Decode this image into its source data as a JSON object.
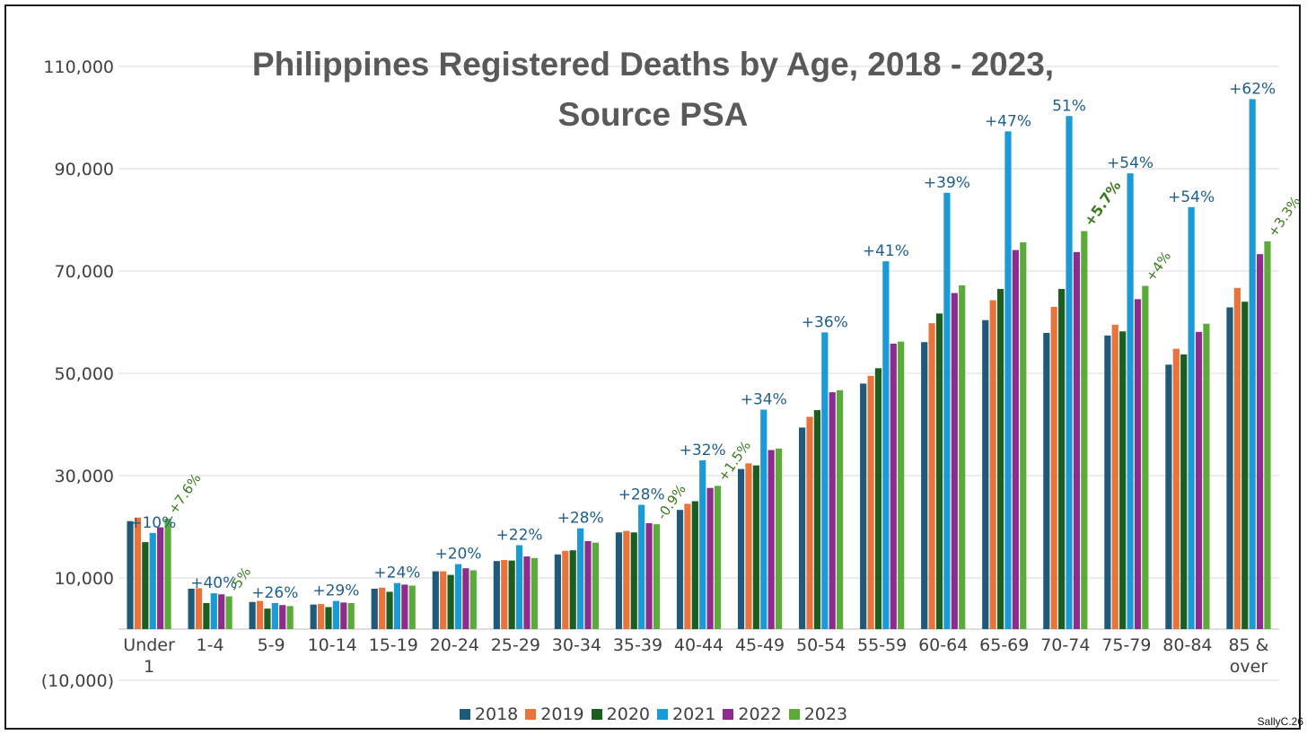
{
  "chart_data": {
    "type": "bar",
    "title_line1": "Philippines Registered Deaths by Age, 2018 - 2023,",
    "title_line2": "Source PSA",
    "xlabel": "",
    "ylabel": "",
    "ylim": [
      -10000,
      115000
    ],
    "yticks": [
      {
        "value": 110000,
        "label": "110,000"
      },
      {
        "value": 90000,
        "label": "90,000"
      },
      {
        "value": 70000,
        "label": "70,000"
      },
      {
        "value": 50000,
        "label": "50,000"
      },
      {
        "value": 30000,
        "label": "30,000"
      },
      {
        "value": 10000,
        "label": "10,000"
      },
      {
        "value": -10000,
        "label": "(10,000)"
      }
    ],
    "categories": [
      [
        "Under",
        "1"
      ],
      [
        "1-4"
      ],
      [
        "5-9"
      ],
      [
        "10-14"
      ],
      [
        "15-19"
      ],
      [
        "20-24"
      ],
      [
        "25-29"
      ],
      [
        "30-34"
      ],
      [
        "35-39"
      ],
      [
        "40-44"
      ],
      [
        "45-49"
      ],
      [
        "50-54"
      ],
      [
        "55-59"
      ],
      [
        "60-64"
      ],
      [
        "65-69"
      ],
      [
        "70-74"
      ],
      [
        "75-79"
      ],
      [
        "80-84"
      ],
      [
        "85 &",
        "over"
      ]
    ],
    "series": [
      {
        "name": "2018",
        "color": "#1f5a7a",
        "values": [
          21100,
          7900,
          5300,
          4800,
          7900,
          11300,
          13300,
          14600,
          18900,
          23300,
          31300,
          39400,
          48000,
          56100,
          60400,
          57900,
          57400,
          51700,
          62900
        ]
      },
      {
        "name": "2019",
        "color": "#e8743b",
        "values": [
          21800,
          8000,
          5500,
          4900,
          8100,
          11300,
          13500,
          15300,
          19200,
          24500,
          32400,
          41500,
          49500,
          59800,
          64300,
          63000,
          59500,
          54800,
          66700
        ]
      },
      {
        "name": "2020",
        "color": "#1b5e20",
        "values": [
          17000,
          5100,
          4000,
          4300,
          7300,
          10600,
          13400,
          15400,
          18900,
          25000,
          32000,
          42800,
          51000,
          61700,
          66500,
          66500,
          58200,
          53700,
          64000
        ]
      },
      {
        "name": "2021",
        "color": "#1a9bd7",
        "values": [
          18800,
          7000,
          5100,
          5500,
          9000,
          12700,
          16400,
          19700,
          24300,
          33000,
          42900,
          58000,
          71900,
          85300,
          97300,
          100300,
          89100,
          82500,
          103600
        ]
      },
      {
        "name": "2022",
        "color": "#8e2c8e",
        "values": [
          19900,
          6800,
          4700,
          5200,
          8700,
          11900,
          14200,
          17200,
          20700,
          27600,
          35000,
          46300,
          55800,
          65700,
          74100,
          73700,
          64500,
          58100,
          73300
        ]
      },
      {
        "name": "2023",
        "color": "#5aab3a",
        "values": [
          21600,
          6400,
          4500,
          5100,
          8500,
          11500,
          13900,
          16900,
          20500,
          28000,
          35300,
          46700,
          56200,
          67200,
          75600,
          77800,
          67100,
          59700,
          75800
        ]
      }
    ],
    "blue_labels": [
      "+10%",
      "+40%",
      "+26%",
      "+29%",
      "+24%",
      "+20%",
      "+22%",
      "+28%",
      "+28%",
      "+32%",
      "+34%",
      "+36%",
      "+41%",
      "+39%",
      "+47%",
      "51%",
      "+54%",
      "+54%",
      "+62%"
    ],
    "green_labels": [
      {
        "category": 0,
        "text": "+7.6%"
      },
      {
        "category": 1,
        "text": "-5%"
      },
      {
        "category": 8,
        "text": "-0.9%"
      },
      {
        "category": 9,
        "text": "+1.5%"
      },
      {
        "category": 15,
        "text": "+5.7%"
      },
      {
        "category": 16,
        "text": "+4%"
      },
      {
        "category": 18,
        "text": "+3.3%"
      }
    ],
    "legend_position": "bottom",
    "grid": true
  },
  "colors": {
    "blue_label": "#1f5e8c",
    "green_label": "#3b7a1e",
    "axis_text": "#404040",
    "title": "#595959",
    "grid": "#d9d9d9"
  },
  "watermark": "SallyC.26"
}
